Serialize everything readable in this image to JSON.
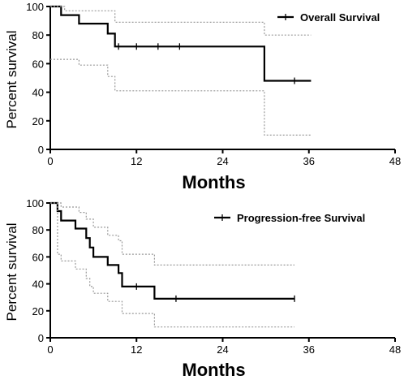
{
  "chart_data": [
    {
      "type": "line",
      "xlabel": "Months",
      "ylabel": "Percent survival",
      "xlim": [
        0,
        48
      ],
      "ylim": [
        0,
        100
      ],
      "xticks": [
        0,
        12,
        24,
        36,
        48
      ],
      "yticks": [
        0,
        20,
        40,
        60,
        80,
        100
      ],
      "legend_position": "top-right",
      "series": [
        {
          "name": "Overall Survival",
          "role": "estimate",
          "points": [
            [
              0,
              100
            ],
            [
              1.5,
              100
            ],
            [
              1.5,
              94
            ],
            [
              4,
              94
            ],
            [
              4,
              88
            ],
            [
              8,
              88
            ],
            [
              8,
              81
            ],
            [
              9,
              81
            ],
            [
              9,
              72
            ],
            [
              29.8,
              72
            ],
            [
              29.8,
              48
            ],
            [
              36.3,
              48
            ]
          ],
          "censored": [
            [
              9.5,
              72
            ],
            [
              12,
              72
            ],
            [
              15,
              72
            ],
            [
              18,
              72
            ],
            [
              34,
              48
            ]
          ]
        },
        {
          "name": "",
          "role": "ci-upper",
          "points": [
            [
              0,
              100
            ],
            [
              2,
              100
            ],
            [
              2,
              97
            ],
            [
              9,
              97
            ],
            [
              9,
              89
            ],
            [
              29.8,
              89
            ],
            [
              29.8,
              80
            ],
            [
              36.3,
              80
            ]
          ]
        },
        {
          "name": "",
          "role": "ci-lower",
          "points": [
            [
              0,
              63
            ],
            [
              4,
              63
            ],
            [
              4,
              59
            ],
            [
              8,
              59
            ],
            [
              8,
              51
            ],
            [
              9,
              51
            ],
            [
              9,
              41
            ],
            [
              29.8,
              41
            ],
            [
              29.8,
              10
            ],
            [
              36.3,
              10
            ]
          ]
        }
      ]
    },
    {
      "type": "line",
      "xlabel": "Months",
      "ylabel": "Percent survival",
      "xlim": [
        0,
        48
      ],
      "ylim": [
        0,
        100
      ],
      "xticks": [
        0,
        12,
        24,
        36,
        48
      ],
      "yticks": [
        0,
        20,
        40,
        60,
        80,
        100
      ],
      "legend_position": "top-right",
      "series": [
        {
          "name": "Progression-free Survival",
          "role": "estimate",
          "points": [
            [
              0,
              100
            ],
            [
              1,
              100
            ],
            [
              1,
              94
            ],
            [
              1.5,
              94
            ],
            [
              1.5,
              87
            ],
            [
              3.5,
              87
            ],
            [
              3.5,
              81
            ],
            [
              5,
              81
            ],
            [
              5,
              74
            ],
            [
              5.5,
              74
            ],
            [
              5.5,
              67
            ],
            [
              6,
              67
            ],
            [
              6,
              60
            ],
            [
              8,
              60
            ],
            [
              8,
              54
            ],
            [
              9.5,
              54
            ],
            [
              9.5,
              48
            ],
            [
              10,
              48
            ],
            [
              10,
              38
            ],
            [
              14.5,
              38
            ],
            [
              14.5,
              29
            ],
            [
              34,
              29
            ]
          ],
          "censored": [
            [
              12,
              38
            ],
            [
              17.5,
              29
            ],
            [
              34,
              29
            ]
          ]
        },
        {
          "name": "",
          "role": "ci-upper",
          "points": [
            [
              0,
              100
            ],
            [
              1.5,
              100
            ],
            [
              1.5,
              97
            ],
            [
              4,
              97
            ],
            [
              4,
              93
            ],
            [
              5,
              93
            ],
            [
              5,
              88
            ],
            [
              6,
              88
            ],
            [
              6,
              82
            ],
            [
              8,
              82
            ],
            [
              8,
              76
            ],
            [
              9.5,
              76
            ],
            [
              9.5,
              72
            ],
            [
              10,
              72
            ],
            [
              10,
              62
            ],
            [
              14.5,
              62
            ],
            [
              14.5,
              54
            ],
            [
              34,
              54
            ]
          ]
        },
        {
          "name": "",
          "role": "ci-lower",
          "points": [
            [
              1,
              100
            ],
            [
              1,
              62
            ],
            [
              1.5,
              62
            ],
            [
              1.5,
              57
            ],
            [
              3.5,
              57
            ],
            [
              3.5,
              51
            ],
            [
              5,
              51
            ],
            [
              5,
              44
            ],
            [
              5.5,
              44
            ],
            [
              5.5,
              38
            ],
            [
              6,
              38
            ],
            [
              6,
              33
            ],
            [
              8,
              33
            ],
            [
              8,
              27
            ],
            [
              10,
              27
            ],
            [
              10,
              18
            ],
            [
              14.5,
              18
            ],
            [
              14.5,
              8
            ],
            [
              34,
              8
            ]
          ]
        }
      ]
    }
  ]
}
